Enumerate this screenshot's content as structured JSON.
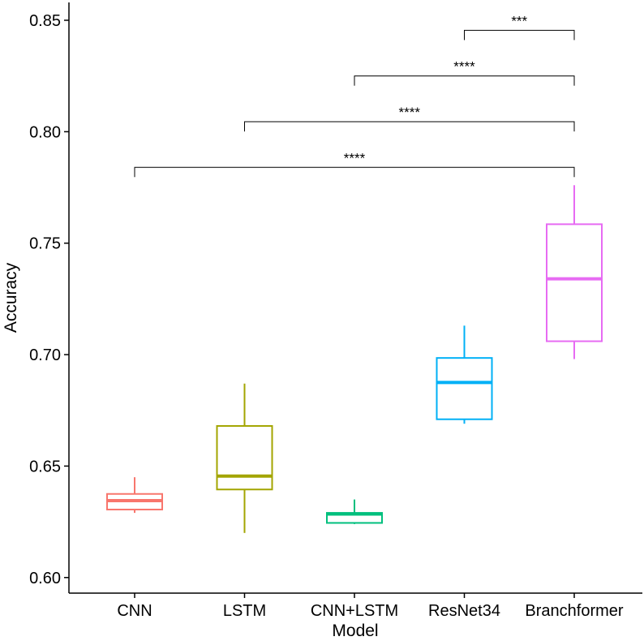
{
  "chart_data": {
    "type": "boxplot",
    "title": "",
    "xlabel": "Model",
    "ylabel": "Accuracy",
    "ylim": [
      0.593,
      0.858
    ],
    "yticks": [
      0.6,
      0.65,
      0.7,
      0.75,
      0.8,
      0.85
    ],
    "ytick_labels": [
      "0.60",
      "0.65",
      "0.70",
      "0.75",
      "0.80",
      "0.85"
    ],
    "categories": [
      "CNN",
      "LSTM",
      "CNN+LSTM",
      "ResNet34",
      "Branchformer"
    ],
    "boxes": [
      {
        "name": "CNN",
        "color": "#F8766D",
        "min": 0.629,
        "q1": 0.6305,
        "median": 0.6345,
        "q3": 0.6375,
        "max": 0.645
      },
      {
        "name": "LSTM",
        "color": "#A3A500",
        "min": 0.62,
        "q1": 0.6395,
        "median": 0.6455,
        "q3": 0.668,
        "max": 0.687
      },
      {
        "name": "CNN+LSTM",
        "color": "#00BF7D",
        "min": 0.624,
        "q1": 0.6245,
        "median": 0.6285,
        "q3": 0.629,
        "max": 0.635
      },
      {
        "name": "ResNet34",
        "color": "#00B0F6",
        "min": 0.669,
        "q1": 0.671,
        "median": 0.6875,
        "q3": 0.6985,
        "max": 0.713
      },
      {
        "name": "Branchformer",
        "color": "#E76BF3",
        "min": 0.698,
        "q1": 0.706,
        "median": 0.734,
        "q3": 0.7585,
        "max": 0.776
      }
    ],
    "significance": [
      {
        "from": "ResNet34",
        "to": "Branchformer",
        "label": "***",
        "y": 0.8455
      },
      {
        "from": "CNN+LSTM",
        "to": "Branchformer",
        "label": "****",
        "y": 0.825
      },
      {
        "from": "LSTM",
        "to": "Branchformer",
        "label": "****",
        "y": 0.8045
      },
      {
        "from": "CNN",
        "to": "Branchformer",
        "label": "****",
        "y": 0.784
      }
    ],
    "legend": "none",
    "grid": false
  }
}
